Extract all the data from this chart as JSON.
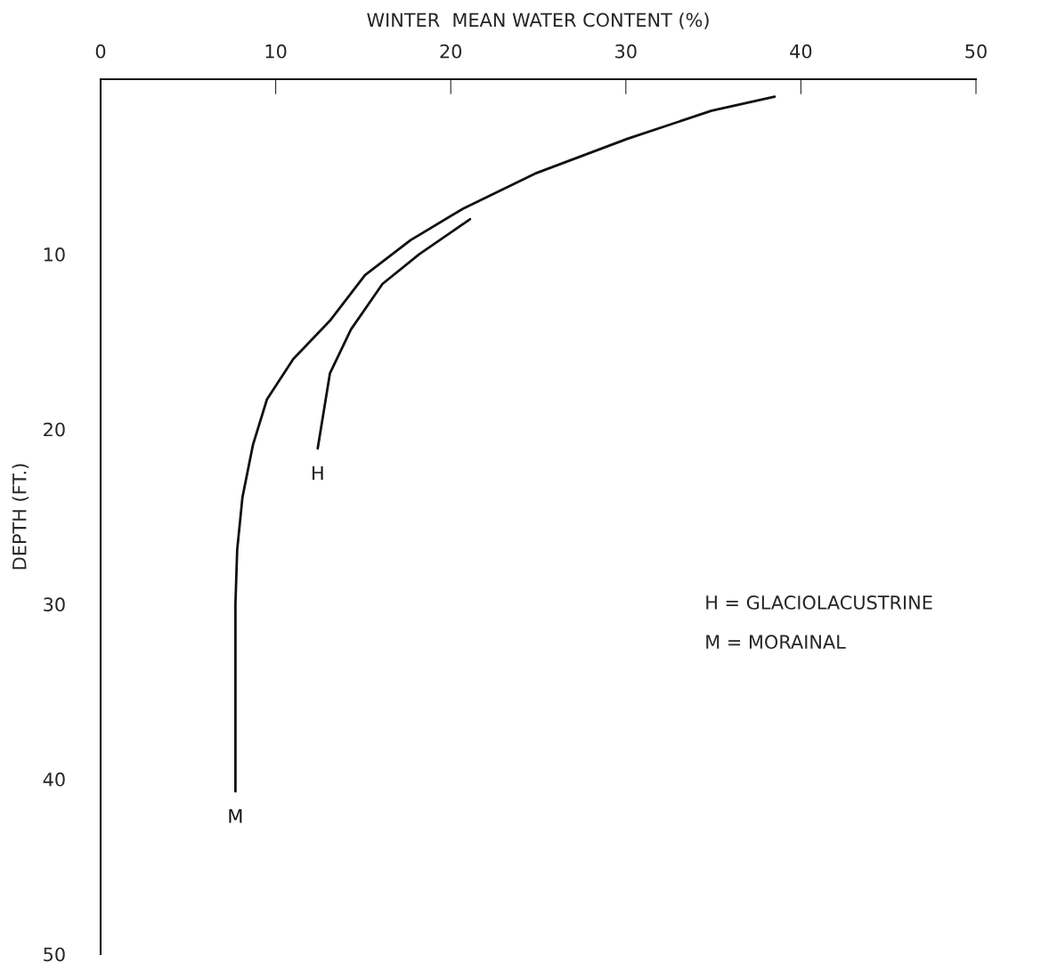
{
  "chart_data": {
    "type": "line",
    "xlabel": "WINTER  MEAN WATER CONTENT (%)",
    "ylabel": "DEPTH (FT.)",
    "xlim": [
      0,
      50
    ],
    "xticks": [
      0,
      10,
      20,
      30,
      40,
      50
    ],
    "ylim": [
      50,
      0
    ],
    "yticks": [
      10,
      20,
      30,
      40,
      50
    ],
    "grid": false,
    "legend": false,
    "marker": "none",
    "line_style": "solid",
    "series": [
      {
        "name": "M",
        "color": "#111111",
        "x": [
          38.5,
          34.9,
          30.1,
          24.8,
          20.7,
          17.7,
          15.1,
          13.1,
          11.0,
          9.5,
          8.7,
          8.1,
          7.8,
          7.7,
          7.7
        ],
        "values": [
          1.0,
          1.8,
          3.4,
          5.4,
          7.4,
          9.2,
          11.2,
          13.8,
          16.0,
          18.3,
          20.9,
          23.9,
          26.9,
          30.0,
          40.7
        ]
      },
      {
        "name": "H",
        "color": "#111111",
        "x": [
          21.1,
          18.2,
          16.1,
          14.3,
          13.1,
          12.4
        ],
        "values": [
          8.0,
          10.0,
          11.7,
          14.3,
          16.8,
          21.1
        ]
      }
    ],
    "annotations": [
      "H = GLACIOLACUSTRINE",
      "M = MORAINAL"
    ]
  }
}
